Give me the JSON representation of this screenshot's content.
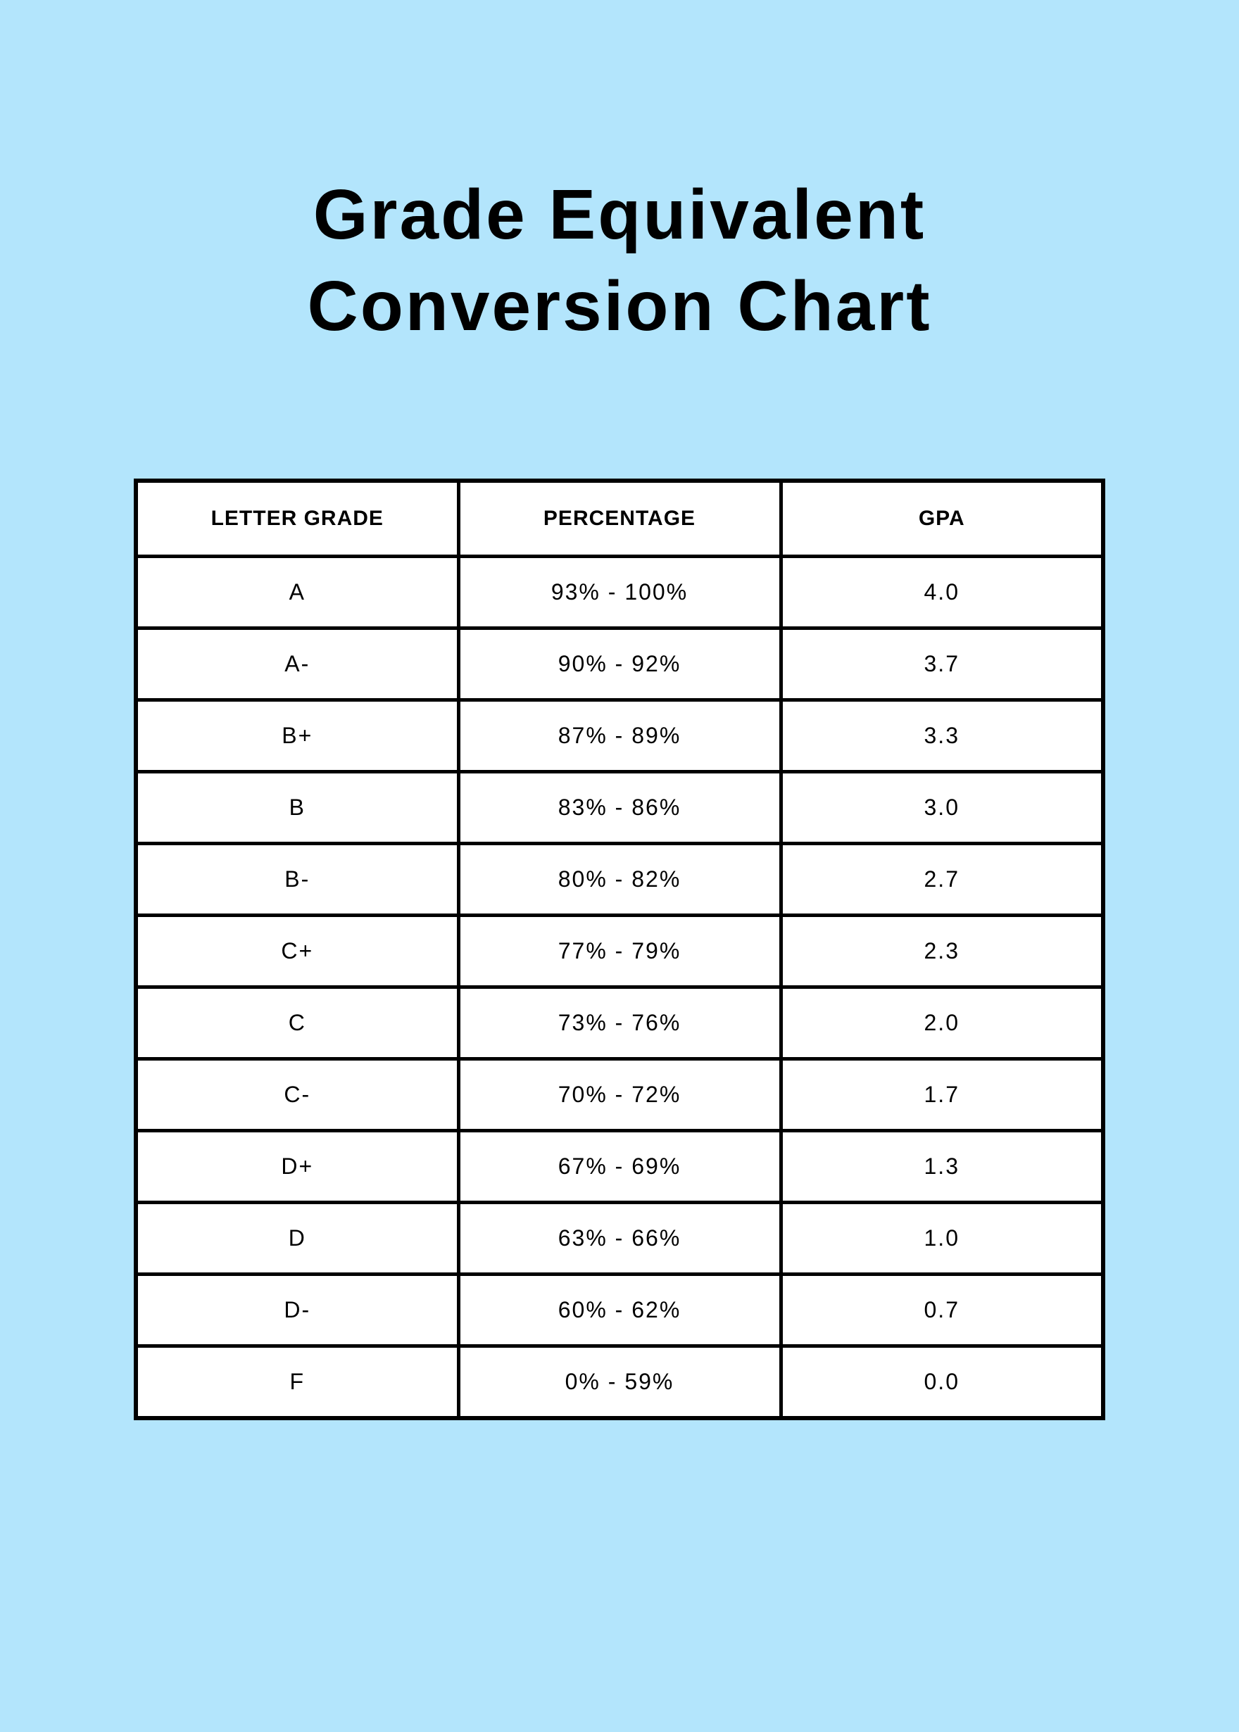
{
  "title_line1": "Grade Equivalent",
  "title_line2": "Conversion Chart",
  "table": {
    "type": "table",
    "columns": [
      "LETTER GRADE",
      "PERCENTAGE",
      "GPA"
    ],
    "column_widths": [
      "33.33%",
      "33.33%",
      "33.33%"
    ],
    "rows": [
      [
        "A",
        "93% - 100%",
        "4.0"
      ],
      [
        "A-",
        "90% - 92%",
        "3.7"
      ],
      [
        "B+",
        "87% - 89%",
        "3.3"
      ],
      [
        "B",
        "83% - 86%",
        "3.0"
      ],
      [
        "B-",
        "80% - 82%",
        "2.7"
      ],
      [
        "C+",
        "77% - 79%",
        "2.3"
      ],
      [
        "C",
        "73% - 76%",
        "2.0"
      ],
      [
        "C-",
        "70% - 72%",
        "1.7"
      ],
      [
        "D+",
        "67% - 69%",
        "1.3"
      ],
      [
        "D",
        "63% - 66%",
        "1.0"
      ],
      [
        "D-",
        "60% - 62%",
        "0.7"
      ],
      [
        "F",
        "0% - 59%",
        "0.0"
      ]
    ],
    "style": {
      "background_color": "#b3e5fc",
      "table_background": "#ffffff",
      "border_color": "#000000",
      "outer_border_width": 6,
      "inner_border_width": 5,
      "header_fontsize": 30,
      "header_fontweight": "bold",
      "cell_fontsize": 32,
      "title_fontsize": 100,
      "title_fontweight": "bold",
      "text_color": "#000000"
    }
  }
}
